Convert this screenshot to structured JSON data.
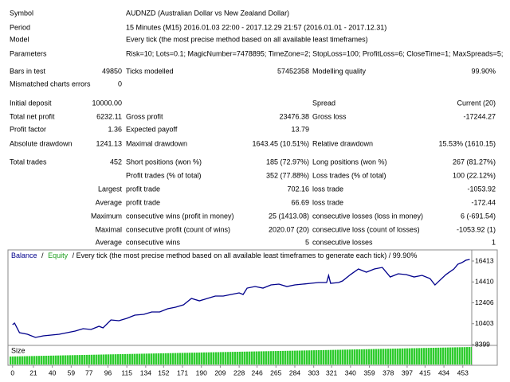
{
  "header": {
    "rows": [
      [
        "Symbol",
        "AUDNZD (Australian Dollar vs New Zealand Dollar)"
      ],
      [
        "Period",
        "15 Minutes (M15) 2016.01.03 22:00 - 2017.12.29 21:57 (2016.01.01 - 2017.12.31)"
      ],
      [
        "Model",
        "Every tick (the most precise method based on all available least timeframes)"
      ],
      [
        "Parameters",
        "Risk=10; Lots=0.1; MagicNumber=7478895; TimeZone=2; StopLoss=100; ProfitLoss=6; CloseTime=1; MaxSpreads=5;"
      ]
    ]
  },
  "table": {
    "rows": [
      [
        "Bars in test",
        "49850",
        "Ticks modelled",
        "57452358",
        "Modelling quality",
        "99.90%"
      ],
      [
        "Mismatched charts errors",
        "0",
        null,
        null,
        null,
        null
      ],
      [
        "Initial deposit",
        "10000.00",
        null,
        null,
        "Spread",
        "Current (20)"
      ],
      [
        "Total net profit",
        "6232.11",
        "Gross profit",
        "23476.38",
        "Gross loss",
        "-17244.27"
      ],
      [
        "Profit factor",
        "1.36",
        "Expected payoff",
        "13.79",
        null,
        null
      ],
      [
        "Absolute drawdown",
        "1241.13",
        "Maximal drawdown",
        "1643.45 (10.51%)",
        "Relative drawdown",
        "15.53% (1610.15)"
      ],
      [
        "Total trades",
        "452",
        "Short positions (won %)",
        "185 (72.97%)",
        "Long positions (won %)",
        "267 (81.27%)"
      ],
      [
        null,
        null,
        "Profit trades (% of total)",
        "352 (77.88%)",
        "Loss trades (% of total)",
        "100 (22.12%)"
      ],
      [
        null,
        "Largest",
        "profit trade",
        "702.16",
        "loss trade",
        "-1053.92"
      ],
      [
        null,
        "Average",
        "profit trade",
        "66.69",
        "loss trade",
        "-172.44"
      ],
      [
        null,
        "Maximum",
        "consecutive wins (profit in money)",
        "25 (1413.08)",
        "consecutive losses (loss in money)",
        "6 (-691.54)"
      ],
      [
        null,
        "Maximal",
        "consecutive profit (count of wins)",
        "2020.07 (20)",
        "consecutive loss (count of losses)",
        "-1053.92 (1)"
      ],
      [
        null,
        "Average",
        "consecutive wins",
        "5",
        "consecutive losses",
        "1"
      ]
    ]
  },
  "chart_data": {
    "type": "line",
    "legend_separator": "/",
    "subtitle": "/ Every tick (the most precise method based on all available least timeframes to generate each tick) / 99.90%",
    "size_label": "Size",
    "x": [
      0,
      2,
      7,
      15,
      23,
      31,
      39,
      47,
      55,
      63,
      71,
      79,
      87,
      91,
      99,
      107,
      115,
      123,
      132,
      140,
      148,
      156,
      164,
      172,
      180,
      188,
      196,
      204,
      212,
      220,
      228,
      232,
      236,
      244,
      252,
      260,
      268,
      276,
      284,
      292,
      300,
      308,
      316,
      318,
      320,
      328,
      332,
      340,
      348,
      356,
      364,
      372,
      380,
      388,
      396,
      404,
      412,
      420,
      425,
      430,
      436,
      444,
      448,
      452,
      456,
      460
    ],
    "series": [
      {
        "name": "Balance",
        "color": "#00008b",
        "values": [
          10307,
          10459,
          9544,
          9391,
          9086,
          9238,
          9315,
          9391,
          9544,
          9696,
          9925,
          9849,
          10154,
          10001,
          10764,
          10688,
          10917,
          11222,
          11298,
          11527,
          11527,
          11833,
          11985,
          12214,
          12824,
          12595,
          12824,
          13053,
          13053,
          13206,
          13359,
          13206,
          13816,
          13969,
          13816,
          14121,
          14198,
          13969,
          14121,
          14198,
          14274,
          14351,
          14351,
          15037,
          14274,
          14351,
          14503,
          15113,
          15648,
          15342,
          15648,
          15800,
          14884,
          15190,
          15113,
          14884,
          15037,
          14732,
          14121,
          14579,
          15113,
          15648,
          16105,
          16258,
          16487,
          16563
        ]
      },
      {
        "name": "Equity",
        "color": "#1e9e1e"
      }
    ],
    "xlim": [
      -3,
      462
    ],
    "xticks": [
      0,
      21,
      40,
      59,
      77,
      96,
      115,
      134,
      152,
      171,
      190,
      209,
      228,
      246,
      265,
      284,
      303,
      321,
      340,
      359,
      378,
      397,
      415,
      434,
      453
    ],
    "ylim": [
      8399,
      16566
    ],
    "yticks": [
      16413,
      14410,
      12406,
      10403,
      8399
    ]
  }
}
